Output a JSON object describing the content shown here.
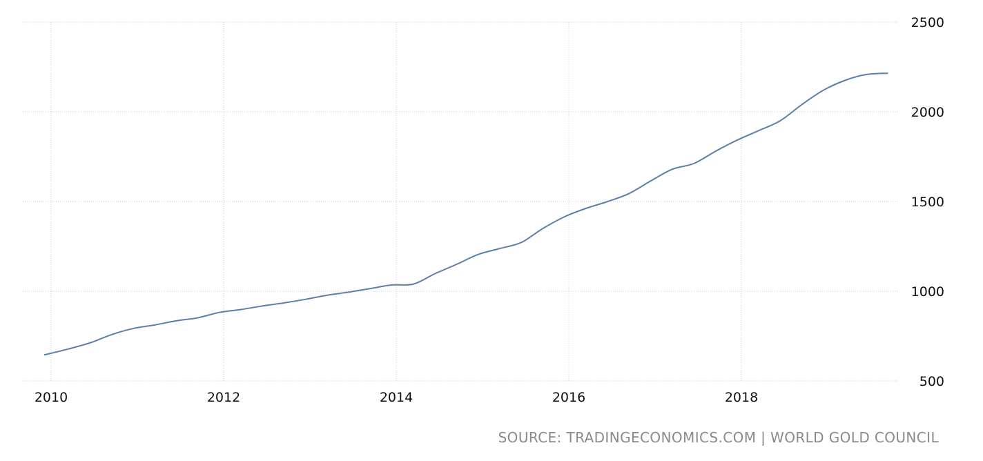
{
  "chart_data": {
    "type": "line",
    "title": "",
    "xlabel": "",
    "ylabel": "",
    "xlim": [
      2010.0,
      2019.0
    ],
    "ylim": [
      500,
      2500
    ],
    "y_ticks": [
      500,
      1000,
      1500,
      2000,
      2500
    ],
    "x_ticks": [
      2010,
      2012,
      2014,
      2016,
      2018
    ],
    "x_tick_labels": [
      "2010",
      "2012",
      "2014",
      "2016",
      "2018"
    ],
    "y_tick_labels": [
      "500",
      "1000",
      "1500",
      "2000",
      "2500"
    ],
    "grid": true,
    "y_axis_side": "right",
    "line_color": "#5b7fa8",
    "series": [
      {
        "x": [
          2009.92,
          2010.2,
          2010.45,
          2010.7,
          2010.95,
          2011.2,
          2011.45,
          2011.7,
          2011.95,
          2012.2,
          2012.45,
          2012.7,
          2012.95,
          2013.2,
          2013.45,
          2013.7,
          2013.95,
          2014.2,
          2014.45,
          2014.7,
          2014.95,
          2015.2,
          2015.45,
          2015.7,
          2015.95,
          2016.2,
          2016.45,
          2016.7,
          2016.95,
          2017.2,
          2017.45,
          2017.7,
          2017.95,
          2018.2,
          2018.45,
          2018.7,
          2018.95,
          2019.2,
          2019.45,
          2019.7
        ],
        "values": [
          645,
          678,
          712,
          758,
          792,
          812,
          835,
          852,
          882,
          898,
          918,
          935,
          955,
          978,
          995,
          1015,
          1035,
          1040,
          1098,
          1150,
          1205,
          1238,
          1272,
          1350,
          1415,
          1462,
          1500,
          1545,
          1615,
          1680,
          1712,
          1780,
          1842,
          1895,
          1950,
          2040,
          2120,
          2175,
          2208,
          2215
        ]
      }
    ]
  },
  "source_text": "SOURCE: TRADINGECONOMICS.COM | WORLD GOLD COUNCIL"
}
